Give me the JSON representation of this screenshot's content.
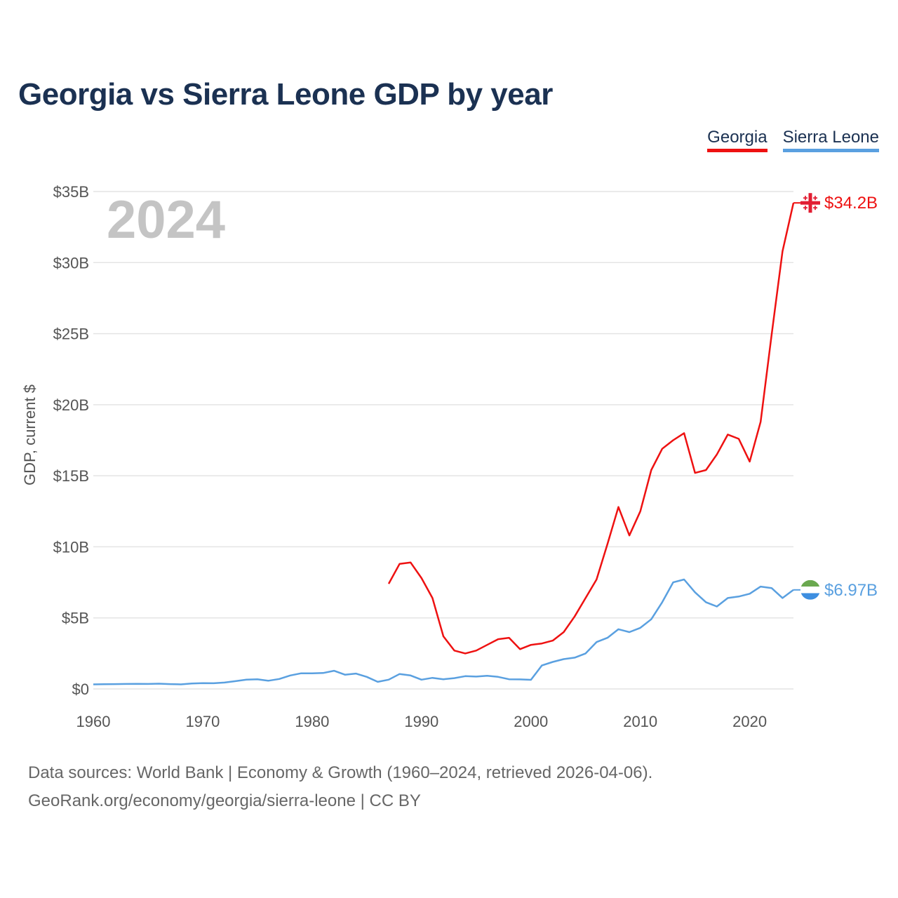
{
  "chart_data": {
    "type": "line",
    "title": "Georgia vs Sierra Leone GDP by year",
    "ylabel": "GDP, current $",
    "xlabel": "",
    "year_label": "2024",
    "xlim": [
      1960,
      2024
    ],
    "ylim": [
      0,
      35
    ],
    "x_ticks": [
      1960,
      1970,
      1980,
      1990,
      2000,
      2010,
      2020
    ],
    "x_tick_labels": [
      "1960",
      "1970",
      "1980",
      "1990",
      "2000",
      "2010",
      "2020"
    ],
    "y_ticks": [
      0,
      5,
      10,
      15,
      20,
      25,
      30,
      35
    ],
    "y_tick_labels": [
      "$0",
      "$5B",
      "$10B",
      "$15B",
      "$20B",
      "$25B",
      "$30B",
      "$35B"
    ],
    "legend_position": "top-right",
    "series": [
      {
        "name": "Georgia",
        "color": "#ee1111",
        "end_label": "$34.2B",
        "flag_icon": "georgia-flag-icon",
        "x": [
          1987,
          1988,
          1989,
          1990,
          1991,
          1992,
          1993,
          1994,
          1995,
          1996,
          1997,
          1998,
          1999,
          2000,
          2001,
          2002,
          2003,
          2004,
          2005,
          2006,
          2007,
          2008,
          2009,
          2010,
          2011,
          2012,
          2013,
          2014,
          2015,
          2016,
          2017,
          2018,
          2019,
          2020,
          2021,
          2022,
          2023,
          2024
        ],
        "values": [
          7.4,
          8.8,
          8.9,
          7.8,
          6.4,
          3.7,
          2.7,
          2.5,
          2.7,
          3.1,
          3.5,
          3.6,
          2.8,
          3.1,
          3.2,
          3.4,
          4.0,
          5.1,
          6.4,
          7.7,
          10.2,
          12.8,
          10.8,
          12.5,
          15.4,
          16.9,
          17.5,
          18.0,
          15.2,
          15.4,
          16.5,
          17.9,
          17.6,
          16.0,
          18.8,
          24.9,
          30.8,
          34.2
        ]
      },
      {
        "name": "Sierra Leone",
        "color": "#5aa0e0",
        "end_label": "$6.97B",
        "flag_icon": "sierra-leone-flag-icon",
        "x": [
          1960,
          1961,
          1962,
          1963,
          1964,
          1965,
          1966,
          1967,
          1968,
          1969,
          1970,
          1971,
          1972,
          1973,
          1974,
          1975,
          1976,
          1977,
          1978,
          1979,
          1980,
          1981,
          1982,
          1983,
          1984,
          1985,
          1986,
          1987,
          1988,
          1989,
          1990,
          1991,
          1992,
          1993,
          1994,
          1995,
          1996,
          1997,
          1998,
          1999,
          2000,
          2001,
          2002,
          2003,
          2004,
          2005,
          2006,
          2007,
          2008,
          2009,
          2010,
          2011,
          2012,
          2013,
          2014,
          2015,
          2016,
          2017,
          2018,
          2019,
          2020,
          2021,
          2022,
          2023,
          2024
        ],
        "values": [
          0.32,
          0.33,
          0.34,
          0.35,
          0.36,
          0.35,
          0.37,
          0.34,
          0.32,
          0.38,
          0.41,
          0.4,
          0.45,
          0.55,
          0.65,
          0.68,
          0.58,
          0.7,
          0.95,
          1.1,
          1.1,
          1.12,
          1.28,
          1.0,
          1.08,
          0.85,
          0.5,
          0.65,
          1.05,
          0.95,
          0.65,
          0.78,
          0.68,
          0.76,
          0.9,
          0.87,
          0.93,
          0.85,
          0.68,
          0.67,
          0.64,
          1.65,
          1.9,
          2.1,
          2.2,
          2.5,
          3.3,
          3.6,
          4.2,
          4.0,
          4.3,
          4.9,
          6.1,
          7.5,
          7.7,
          6.8,
          6.1,
          5.8,
          6.4,
          6.5,
          6.7,
          7.2,
          7.1,
          6.4,
          6.97
        ]
      }
    ]
  },
  "footer": {
    "line1": "Data sources: World Bank | Economy & Growth (1960–2024, retrieved 2026-04-06).",
    "line2": "GeoRank.org/economy/georgia/sierra-leone | CC BY"
  }
}
